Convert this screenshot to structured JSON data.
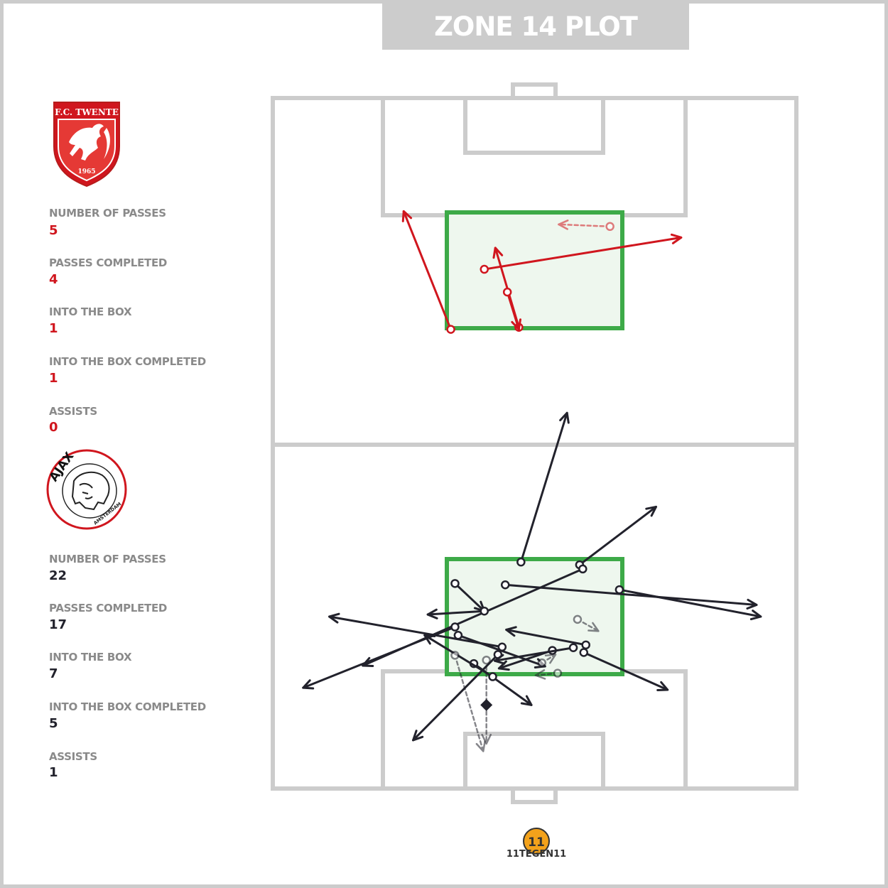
{
  "title": "ZONE 14 PLOT",
  "colors": {
    "twente": "#d0161e",
    "ajax": "#22222c",
    "zone_stroke": "#3daa48",
    "zone_fill": "#eef7ee",
    "pitch_lines": "#cccccc",
    "title_bg": "#cccccc"
  },
  "teams": [
    {
      "badge_icon": "fc-twente-crest-icon",
      "badge_text": "F.C. TWENTE",
      "badge_year": "1965",
      "color": "#d0161e",
      "stats": [
        {
          "label": "NUMBER OF PASSES",
          "value": "5"
        },
        {
          "label": "PASSES COMPLETED",
          "value": "4"
        },
        {
          "label": "INTO THE BOX",
          "value": "1"
        },
        {
          "label": "INTO THE BOX COMPLETED",
          "value": "1"
        },
        {
          "label": "ASSISTS",
          "value": "0"
        }
      ]
    },
    {
      "badge_icon": "ajax-crest-icon",
      "badge_text": "AJAX",
      "badge_subtext": "AMSTERDAM",
      "color": "#22222c",
      "stats": [
        {
          "label": "NUMBER OF PASSES",
          "value": "22"
        },
        {
          "label": "PASSES COMPLETED",
          "value": "17"
        },
        {
          "label": "INTO THE BOX",
          "value": "7"
        },
        {
          "label": "INTO THE BOX COMPLETED",
          "value": "5"
        },
        {
          "label": "ASSISTS",
          "value": "1"
        }
      ]
    }
  ],
  "footer": {
    "logo_icon": "11tegen11-logo-icon",
    "logo_text": "11TEGEN11"
  },
  "chart_data": {
    "type": "scatter",
    "description_units": "pitch coordinates, x 0-100 across width, y 0-100 along length (0 = Twente goal line at top, 100 = Ajax goal line at bottom)",
    "series": [
      {
        "name": "FC Twente",
        "passes": [
          {
            "x1": 34,
            "y1": 33.5,
            "x2": 25,
            "y2": 16.4,
            "completed": true
          },
          {
            "x1": 40.4,
            "y1": 24.8,
            "x2": 78,
            "y2": 20.2,
            "completed": true
          },
          {
            "x1": 47,
            "y1": 33.2,
            "x2": 42.5,
            "y2": 21.7,
            "completed": true
          },
          {
            "x1": 44.8,
            "y1": 28.1,
            "x2": 47,
            "y2": 33.5,
            "completed": true
          },
          {
            "x1": 64.4,
            "y1": 18.6,
            "x2": 54.6,
            "y2": 18.3,
            "completed": false
          }
        ]
      },
      {
        "name": "Ajax",
        "passes": [
          {
            "x1": 47.4,
            "y1": 67.2,
            "x2": 56.2,
            "y2": 45.6,
            "completed": true
          },
          {
            "x1": 58.6,
            "y1": 67.6,
            "x2": 73.2,
            "y2": 59.2,
            "completed": true
          },
          {
            "x1": 44.4,
            "y1": 70.5,
            "x2": 92.4,
            "y2": 73.4,
            "completed": true
          },
          {
            "x1": 66.2,
            "y1": 71.2,
            "x2": 93.2,
            "y2": 75.1,
            "completed": true
          },
          {
            "x1": 59.2,
            "y1": 68.2,
            "x2": 17.2,
            "y2": 82.2,
            "completed": true
          },
          {
            "x1": 34.8,
            "y1": 70.3,
            "x2": 40.4,
            "y2": 74.3,
            "completed": true
          },
          {
            "x1": 40.4,
            "y1": 74.3,
            "x2": 29.6,
            "y2": 74.8,
            "completed": true
          },
          {
            "x1": 34.8,
            "y1": 76.6,
            "x2": 5.8,
            "y2": 85.4,
            "completed": true
          },
          {
            "x1": 35.4,
            "y1": 77.8,
            "x2": 52,
            "y2": 82.3,
            "completed": true
          },
          {
            "x1": 43.8,
            "y1": 79.5,
            "x2": 10.8,
            "y2": 75.1,
            "completed": true
          },
          {
            "x1": 43,
            "y1": 80.6,
            "x2": 26.8,
            "y2": 93,
            "completed": true
          },
          {
            "x1": 53.4,
            "y1": 80,
            "x2": 43.2,
            "y2": 82.6,
            "completed": true
          },
          {
            "x1": 59.8,
            "y1": 79.2,
            "x2": 44.6,
            "y2": 77,
            "completed": true
          },
          {
            "x1": 59.4,
            "y1": 80.3,
            "x2": 75.4,
            "y2": 85.7,
            "completed": true
          },
          {
            "x1": 57.4,
            "y1": 79.6,
            "x2": 42.4,
            "y2": 81.5,
            "completed": true
          },
          {
            "x1": 38.4,
            "y1": 81.9,
            "x2": 49.4,
            "y2": 87.9,
            "completed": true
          },
          {
            "x1": 42,
            "y1": 83.8,
            "x2": 29,
            "y2": 77.8,
            "completed": true
          },
          {
            "x1": 58.2,
            "y1": 75.5,
            "x2": 62.2,
            "y2": 77.2,
            "completed": false
          },
          {
            "x1": 51.4,
            "y1": 81.8,
            "x2": 54,
            "y2": 80.6,
            "completed": false
          },
          {
            "x1": 54.4,
            "y1": 83.3,
            "x2": 50.2,
            "y2": 83.6,
            "completed": false
          },
          {
            "x1": 34.8,
            "y1": 80.7,
            "x2": 40.2,
            "y2": 94.6,
            "completed": false
          },
          {
            "x1": 40.8,
            "y1": 81.4,
            "x2": 40.8,
            "y2": 93.5,
            "completed": false
          }
        ],
        "assist_marker": {
          "x": 40.8,
          "y": 87.9
        }
      }
    ]
  }
}
